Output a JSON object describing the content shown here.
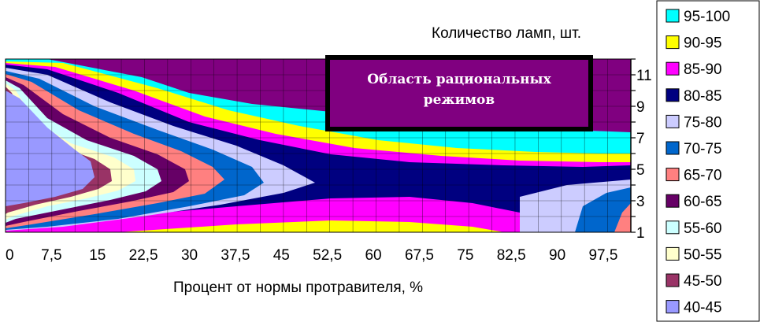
{
  "chart_data": {
    "type": "contour",
    "xlabel": "Процент от нормы протравителя, %",
    "ylabel": "Количество ламп, шт.",
    "x_ticks": [
      "0",
      "7,5",
      "15",
      "22,5",
      "30",
      "37,5",
      "45",
      "52,5",
      "60",
      "67,5",
      "75",
      "82,5",
      "90",
      "97,5"
    ],
    "y_ticks": [
      "1",
      "3",
      "5",
      "7",
      "9",
      "11"
    ],
    "xlim": [
      0,
      100
    ],
    "ylim": [
      1,
      12
    ],
    "grid": true,
    "legend_position": "right",
    "legend": [
      {
        "label": "95-100",
        "color": "#00ffff"
      },
      {
        "label": "90-95",
        "color": "#ffff00"
      },
      {
        "label": "85-90",
        "color": "#ff00ff"
      },
      {
        "label": "80-85",
        "color": "#000080"
      },
      {
        "label": "75-80",
        "color": "#ccccff"
      },
      {
        "label": "70-75",
        "color": "#0066cc"
      },
      {
        "label": "65-70",
        "color": "#ff8080"
      },
      {
        "label": "60-65",
        "color": "#660066"
      },
      {
        "label": "55-60",
        "color": "#ccffff"
      },
      {
        "label": "50-55",
        "color": "#ffffcc"
      },
      {
        "label": "45-50",
        "color": "#993366"
      },
      {
        "label": "40-45",
        "color": "#9999ff"
      }
    ],
    "annotation": {
      "line1": "Область рациональных",
      "line2": "режимов",
      "fill": "#800080"
    }
  }
}
